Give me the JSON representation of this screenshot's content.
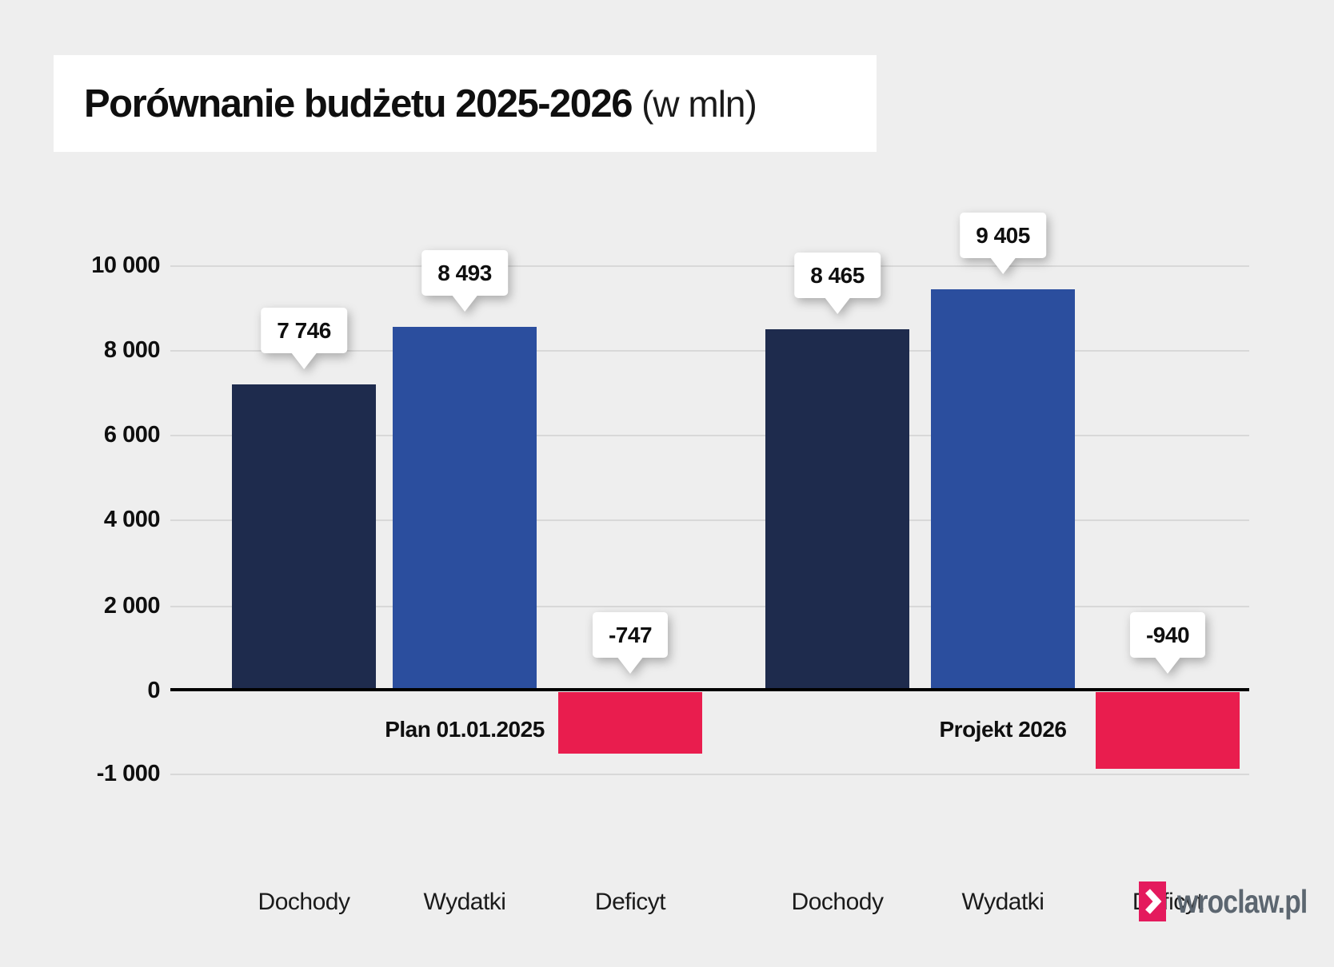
{
  "page": {
    "background": "#eeeeee"
  },
  "header": {
    "title_main": "Porównanie budżetu 2025-2026",
    "title_suffix": "(w mln)"
  },
  "y_axis": {
    "tick_labels": [
      "10 000",
      "8 000",
      "6 000",
      "4 000",
      "2 000",
      "0",
      "-1 000"
    ]
  },
  "chart_data": {
    "type": "bar",
    "title": "Porównanie budżetu 2025-2026 (w mln)",
    "unit": "mln",
    "ylim": [
      -1000,
      10000
    ],
    "y_ticks": [
      10000,
      8000,
      6000,
      4000,
      2000,
      0,
      -1000
    ],
    "grid": true,
    "legend_position": "none",
    "categories": [
      "Dochody",
      "Wydatki",
      "Deficyt"
    ],
    "groups": [
      {
        "label": "Plan 01.01.2025",
        "values": [
          7746,
          8493,
          -747
        ],
        "value_labels": [
          "7 746",
          "8 493",
          "-747"
        ]
      },
      {
        "label": "Projekt 2026",
        "values": [
          8465,
          9405,
          -940
        ],
        "value_labels": [
          "8 465",
          "9 405",
          "-940"
        ]
      }
    ],
    "series_colors": {
      "Dochody": "#1e2b4d",
      "Wydatki": "#2b4e9e",
      "Deficyt": "#e91d4e"
    },
    "zero_line_color": "#000000",
    "gridline_color": "#d8d8d8"
  },
  "footer": {
    "brand": "wroclaw.pl",
    "brand_color": "#5c6670",
    "logo_color": "#e41a5d",
    "logo_glyph": "chevron-right"
  }
}
